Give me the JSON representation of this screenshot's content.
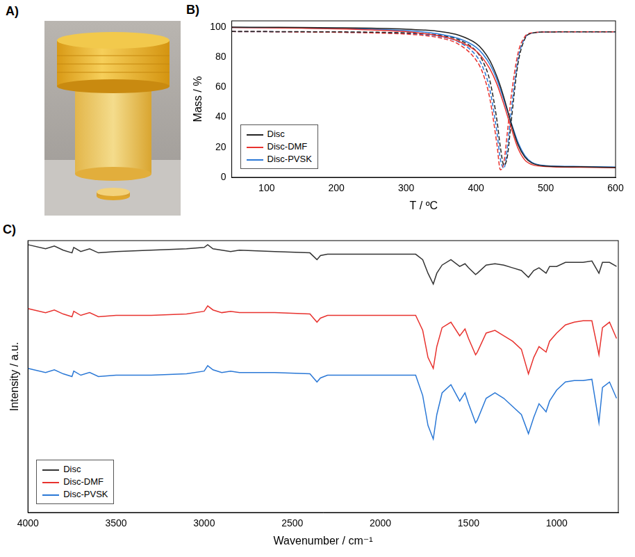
{
  "photo_panel": {
    "panel_label": "A)"
  },
  "chart_data": [
    {
      "panel_label": "B)",
      "type": "line",
      "x_label": "T / ºC",
      "y_label": "Mass / %",
      "xlim": [
        50,
        600
      ],
      "xticks": [
        100,
        200,
        300,
        400,
        500,
        600
      ],
      "ylim": [
        0,
        104
      ],
      "yticks": [
        0,
        20,
        40,
        60,
        80,
        100
      ],
      "grid": false,
      "legend": "lower left",
      "x": [
        50,
        100,
        150,
        200,
        250,
        300,
        325,
        350,
        375,
        400,
        410,
        420,
        430,
        435,
        440,
        445,
        450,
        460,
        470,
        480,
        500,
        550,
        600
      ],
      "series": [
        {
          "name": "Disc",
          "color": "#222222",
          "line_style": "solid",
          "values": [
            99.8,
            99.7,
            99.6,
            99.4,
            99.1,
            98.5,
            97.9,
            96.8,
            94.5,
            89.0,
            84.5,
            77.5,
            67.0,
            60.5,
            53.0,
            45.0,
            36.5,
            22.0,
            13.5,
            9.5,
            7.5,
            7.0,
            6.6
          ]
        },
        {
          "name": "Disc-DMF",
          "color": "#e8322e",
          "line_style": "solid",
          "values": [
            99.6,
            99.4,
            99.1,
            98.7,
            98.0,
            96.8,
            95.6,
            93.8,
            90.5,
            84.0,
            79.0,
            72.0,
            62.0,
            55.5,
            48.5,
            41.0,
            33.5,
            19.5,
            11.5,
            8.5,
            7.2,
            6.7,
            6.4
          ]
        },
        {
          "name": "Disc-PVSK",
          "color": "#2a78d6",
          "line_style": "solid",
          "values": [
            99.6,
            99.5,
            99.3,
            99.0,
            98.5,
            97.5,
            96.6,
            95.0,
            92.3,
            86.5,
            81.8,
            75.0,
            65.0,
            58.5,
            51.5,
            44.0,
            37.0,
            23.5,
            14.5,
            10.0,
            7.8,
            7.2,
            6.8
          ]
        },
        {
          "name": "Disc",
          "color": "#222222",
          "line_style": "dashed",
          "values": [
            97.0,
            96.9,
            96.8,
            96.7,
            96.5,
            96.0,
            95.5,
            94.3,
            91.5,
            84.0,
            77.0,
            64.0,
            38.0,
            20.0,
            8.0,
            14.0,
            35.0,
            75.0,
            92.0,
            95.8,
            96.6,
            96.7,
            96.7
          ]
        },
        {
          "name": "Disc-DMF",
          "color": "#e8322e",
          "line_style": "dashed",
          "values": [
            96.9,
            96.8,
            96.6,
            96.4,
            96.0,
            95.2,
            94.3,
            92.5,
            88.5,
            78.0,
            69.0,
            52.0,
            22.0,
            5.0,
            10.0,
            30.0,
            52.0,
            82.0,
            93.5,
            96.0,
            96.6,
            96.7,
            96.7
          ]
        },
        {
          "name": "Disc-PVSK",
          "color": "#2a78d6",
          "line_style": "dashed",
          "values": [
            96.9,
            96.8,
            96.7,
            96.5,
            96.2,
            95.6,
            94.9,
            93.4,
            90.0,
            81.0,
            73.0,
            58.0,
            30.0,
            12.0,
            6.0,
            20.0,
            42.0,
            78.0,
            92.5,
            95.8,
            96.6,
            96.7,
            96.7
          ]
        }
      ]
    },
    {
      "panel_label": "C)",
      "type": "line",
      "x_label": "Wavenumber / cm⁻¹",
      "y_label": "Intensity / a.u.",
      "xlim": [
        4000,
        650
      ],
      "xticks": [
        4000,
        3500,
        3000,
        2500,
        2000,
        1500,
        1000
      ],
      "ylim": [
        0,
        100
      ],
      "tick_labels": "x",
      "grid": false,
      "legend": "lower left",
      "x": [
        4000,
        3900,
        3850,
        3800,
        3750,
        3740,
        3700,
        3650,
        3600,
        3500,
        3300,
        3100,
        3000,
        2980,
        2950,
        2900,
        2850,
        2800,
        2600,
        2400,
        2360,
        2340,
        2300,
        2200,
        2000,
        1800,
        1760,
        1730,
        1700,
        1680,
        1650,
        1600,
        1550,
        1520,
        1500,
        1460,
        1450,
        1400,
        1350,
        1300,
        1250,
        1200,
        1160,
        1130,
        1100,
        1060,
        1040,
        1000,
        950,
        900,
        850,
        800,
        760,
        740,
        700,
        660
      ],
      "series": [
        {
          "name": "Disc",
          "color": "#333333",
          "line_style": "solid",
          "values": [
            98.5,
            97.0,
            98.0,
            96.5,
            95.5,
            97.5,
            96.0,
            97.0,
            95.5,
            96.0,
            96.5,
            97.0,
            97.5,
            98.5,
            97.0,
            96.5,
            96.0,
            96.5,
            96.0,
            95.5,
            93.0,
            94.5,
            95.0,
            95.0,
            95.0,
            95.0,
            93.0,
            88.0,
            84.0,
            88.0,
            91.0,
            93.0,
            90.5,
            91.5,
            90.0,
            87.5,
            88.0,
            91.0,
            91.5,
            91.0,
            90.0,
            89.0,
            86.5,
            89.0,
            90.0,
            88.0,
            90.5,
            90.5,
            92.0,
            92.0,
            92.0,
            92.5,
            88.0,
            92.0,
            92.0,
            90.5
          ]
        },
        {
          "name": "Disc-DMF",
          "color": "#e8322e",
          "line_style": "solid",
          "values": [
            75.0,
            73.5,
            74.5,
            73.0,
            72.0,
            74.0,
            72.5,
            73.5,
            72.0,
            72.5,
            72.5,
            73.0,
            74.0,
            76.0,
            74.5,
            73.5,
            74.0,
            73.5,
            73.5,
            73.0,
            70.0,
            71.5,
            72.5,
            72.5,
            72.5,
            72.5,
            67.0,
            57.0,
            53.0,
            61.0,
            68.0,
            70.0,
            65.0,
            67.5,
            64.0,
            58.0,
            59.0,
            66.0,
            67.0,
            65.0,
            63.0,
            60.0,
            51.0,
            57.0,
            61.0,
            59.0,
            63.0,
            66.0,
            69.0,
            70.0,
            70.5,
            70.5,
            58.0,
            68.0,
            70.0,
            64.0
          ]
        },
        {
          "name": "Disc-PVSK",
          "color": "#2a78d6",
          "line_style": "solid",
          "values": [
            53.0,
            51.5,
            52.5,
            51.0,
            50.0,
            52.0,
            50.5,
            51.5,
            50.0,
            50.5,
            50.5,
            51.0,
            52.0,
            54.0,
            52.5,
            51.5,
            52.0,
            51.5,
            51.5,
            51.0,
            48.0,
            49.5,
            50.5,
            50.5,
            50.5,
            50.5,
            43.0,
            32.0,
            27.0,
            36.0,
            44.0,
            47.0,
            41.0,
            44.0,
            40.0,
            33.0,
            34.0,
            42.0,
            44.0,
            42.0,
            39.0,
            36.0,
            29.0,
            35.0,
            40.0,
            37.0,
            41.0,
            45.0,
            48.0,
            48.5,
            48.5,
            49.0,
            33.0,
            46.0,
            48.0,
            42.0
          ]
        }
      ]
    }
  ]
}
